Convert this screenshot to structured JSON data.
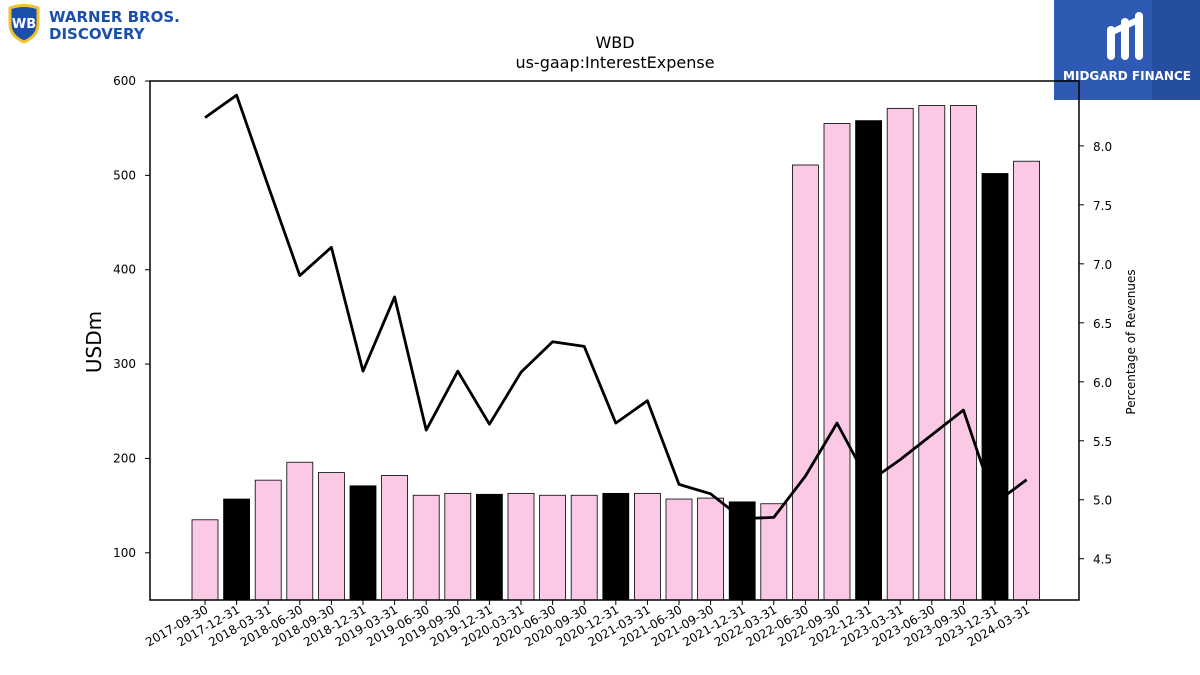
{
  "logos": {
    "left": {
      "line1": "WARNER BROS.",
      "line2": "DISCOVERY",
      "icon": "wb-shield-icon",
      "color": "#1b4faa"
    },
    "right": {
      "name": "MIDGARD FINANCE",
      "icon": "midgard-m-icon",
      "color": "#2f5ab4"
    }
  },
  "chart_data": {
    "type": "bar",
    "title": "WBD",
    "subtitle": "us-gaap:InterestExpense",
    "ylabel": "USDm",
    "y2label": "Percentage of Revenues",
    "ylim": [
      50,
      600
    ],
    "y2lim": [
      4.15,
      8.55
    ],
    "yticks": [
      100,
      200,
      300,
      400,
      500,
      600
    ],
    "y2ticks": [
      "4.5",
      "5.0",
      "5.5",
      "6.0",
      "6.5",
      "7.0",
      "7.5",
      "8.0"
    ],
    "categories": [
      "2017-09-30",
      "2017-12-31",
      "2018-03-31",
      "2018-06-30",
      "2018-09-30",
      "2018-12-31",
      "2019-03-31",
      "2019-06-30",
      "2019-09-30",
      "2019-12-31",
      "2020-03-31",
      "2020-06-30",
      "2020-09-30",
      "2020-12-31",
      "2021-03-31",
      "2021-06-30",
      "2021-09-30",
      "2021-12-31",
      "2022-03-31",
      "2022-06-30",
      "2022-09-30",
      "2022-12-31",
      "2023-03-31",
      "2023-06-30",
      "2023-09-30",
      "2023-12-31",
      "2024-03-31"
    ],
    "series": [
      {
        "type": "bar",
        "values": [
          135,
          157,
          177,
          196,
          185,
          171,
          182,
          161,
          163,
          162,
          163,
          161,
          161,
          163,
          163,
          157,
          158,
          154,
          152,
          511,
          555,
          558,
          571,
          574,
          574,
          502,
          515
        ],
        "highlight": [
          false,
          true,
          false,
          false,
          false,
          true,
          false,
          false,
          false,
          true,
          false,
          false,
          false,
          true,
          false,
          false,
          false,
          true,
          false,
          false,
          false,
          true,
          false,
          false,
          false,
          true,
          false
        ],
        "color": "#fbc8e6",
        "highlight_color": "#000000"
      },
      {
        "type": "line",
        "axis": "right",
        "values": [
          8.24,
          8.43,
          7.66,
          6.9,
          7.14,
          6.09,
          6.72,
          5.59,
          6.09,
          5.64,
          6.08,
          6.34,
          6.3,
          5.65,
          5.84,
          5.13,
          5.05,
          4.84,
          4.85,
          5.2,
          5.65,
          5.15,
          5.34,
          5.55,
          5.76,
          4.97,
          5.17
        ],
        "color": "#000000"
      }
    ]
  }
}
